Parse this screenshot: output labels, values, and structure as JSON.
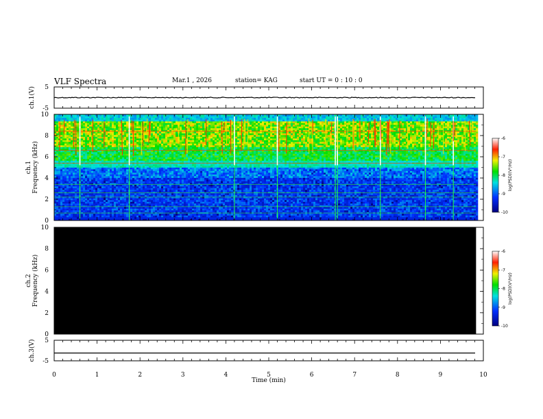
{
  "header": {
    "title": "VLF Spectra",
    "date": "Mar.1  , 2026",
    "station": "station= KAG",
    "start": "start  UT =   0 : 10 : 0"
  },
  "chart_data": [
    {
      "type": "line",
      "name": "ch1-voltage",
      "ylabel": "ch.1(V)",
      "ylim": [
        -5,
        5
      ],
      "yticks": [
        "5",
        "-5"
      ],
      "series": [
        {
          "name": "ch.1",
          "value": 0
        }
      ]
    },
    {
      "type": "heatmap",
      "name": "ch1-spectrogram",
      "ylabel": "ch.1\nFrequency (kHz)",
      "ylim": [
        0,
        10
      ],
      "yticks": [
        "0",
        "2",
        "4",
        "6",
        "8",
        "10"
      ],
      "colorbar": {
        "label": "log(PSD)(V²/Hz)",
        "ticks": [
          "-6",
          "-7",
          "-8",
          "-9",
          "-10"
        ],
        "range": [
          -10,
          -6
        ]
      },
      "bright_band_khz": [
        5.0,
        10.0
      ],
      "spike_times_min": [
        0.6,
        1.75,
        4.2,
        5.2,
        6.55,
        6.6,
        7.6,
        8.65,
        9.3
      ]
    },
    {
      "type": "heatmap",
      "name": "ch2-spectrogram",
      "ylabel": "ch.2\nFrequency (kHz)",
      "ylim": [
        0,
        10
      ],
      "yticks": [
        "0",
        "2",
        "4",
        "6",
        "8",
        "10"
      ],
      "colorbar": {
        "label": "log(PSD)(V²/Hz)",
        "ticks": [
          "-6",
          "-7",
          "-8",
          "-9",
          "-10"
        ],
        "range": [
          -10,
          -6
        ]
      },
      "fill": "no data (black)"
    },
    {
      "type": "line",
      "name": "ch3-voltage",
      "ylabel": "ch.3(V)",
      "ylim": [
        -5,
        5
      ],
      "yticks": [
        "5",
        "-5"
      ],
      "series": [
        {
          "name": "ch.3",
          "value": -1.2
        }
      ]
    }
  ],
  "xaxis": {
    "label": "Time  (min)",
    "xlim": [
      0,
      10
    ],
    "ticks": [
      "0",
      "1",
      "2",
      "3",
      "4",
      "5",
      "6",
      "7",
      "8",
      "9",
      "10"
    ],
    "data_end_min": 9.83
  }
}
